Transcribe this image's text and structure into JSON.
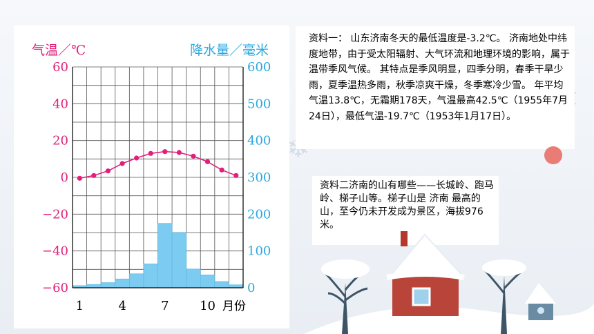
{
  "text": {
    "para1": "资料一：   山东济南冬天的最低温度是-3.2℃。 济南地处中纬度地带，由于受太阳辐射、大气环流和地理环境的影响，属于温带季风气候。 其特点是季风明显，四季分明，春季干旱少雨，夏季温热多雨，秋季凉爽干燥，冬季寒冷少雪。 年平均气温13.8℃，无霜期178天，气温最高42.5℃（1955年7月24日），最低气温-19.7℃（1953年1月17日）。",
    "para2": "资料二济南的山有哪些——长城岭、跑马岭、梯子山等。梯子山是 济南 最高的山，至今仍未开发成为景区，海拔976米。"
  },
  "chart_data": {
    "type": "bar+line",
    "left_axis_label": "气温／℃",
    "right_axis_label": "降水量／毫米",
    "x_unit": "月份",
    "x_tick_labels": [
      "1",
      "4",
      "7",
      "10"
    ],
    "months": [
      1,
      2,
      3,
      4,
      5,
      6,
      7,
      8,
      9,
      10,
      11,
      12
    ],
    "temperature": [
      -0.5,
      1,
      3.5,
      7.5,
      10.5,
      13,
      14,
      13.5,
      11.5,
      8.5,
      4,
      1
    ],
    "precipitation": [
      6,
      9,
      14,
      24,
      38,
      65,
      175,
      150,
      51,
      35,
      17,
      8
    ],
    "left_ylim": [
      -60,
      60
    ],
    "left_ticks": [
      "60",
      "40",
      "20",
      "0",
      "-20",
      "-40",
      "-60"
    ],
    "right_ylim": [
      0,
      600
    ],
    "right_ticks": [
      "600",
      "500",
      "400",
      "300",
      "200",
      "100",
      "0"
    ],
    "colors": {
      "temperature": "#e0207a",
      "precipitation": "#7ccbf0",
      "left_axis": "#e0207a",
      "right_axis": "#29a8e0"
    }
  }
}
